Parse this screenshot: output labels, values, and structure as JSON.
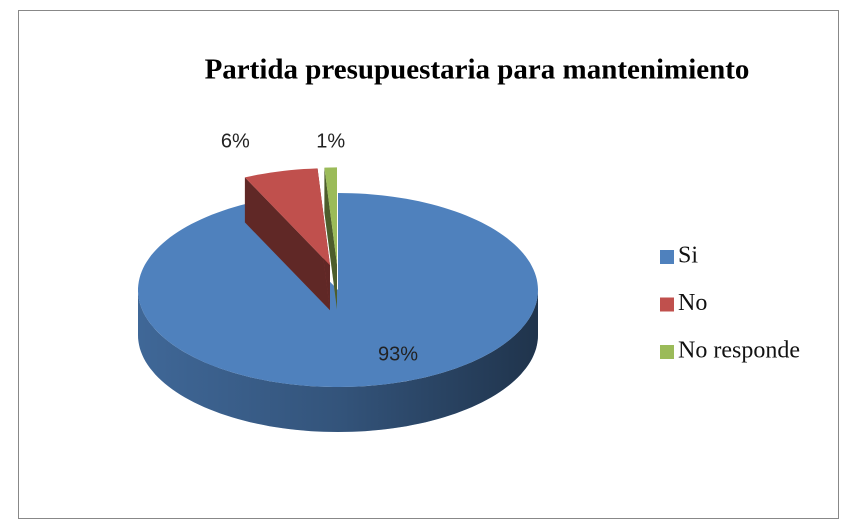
{
  "chart_data": {
    "type": "pie",
    "title": "Partida presupuestaria para mantenimiento",
    "categories": [
      "Si",
      "No",
      "No responde"
    ],
    "values": [
      93,
      6,
      1
    ],
    "value_labels": [
      "93%",
      "6%",
      "1%"
    ],
    "colors": [
      "#4f81bd",
      "#c0504d",
      "#9bbb59"
    ],
    "legend": "right"
  }
}
